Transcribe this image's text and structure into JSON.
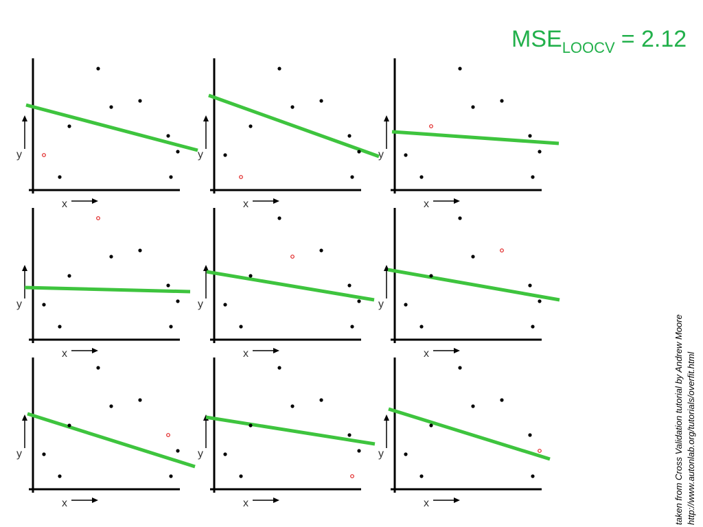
{
  "title": {
    "main": "MSE",
    "sub": "LOOCV",
    "rest": "= 2.12",
    "color": "#22b04b"
  },
  "source": [
    "taken from Cross Validation tutorial by Andrew Moore",
    "http://www.autonlab.org/tutorials/overfit.html"
  ],
  "chart_data": [
    {
      "type": "scatter",
      "xlabel": "x",
      "ylabel": "y",
      "xlim": [
        -15,
        245
      ],
      "ylim": [
        -5,
        195
      ],
      "x": [
        16,
        39,
        53,
        95,
        114,
        156,
        197,
        201,
        211
      ],
      "values": [
        51,
        19,
        93,
        177,
        121,
        130,
        79,
        19,
        56
      ],
      "held_out": 0,
      "point_color": "#000000",
      "held_out_color": "#e02020",
      "line_color": "#3ec43e",
      "fit": {
        "x": [
          -10,
          240
        ],
        "y": [
          124,
          58
        ]
      }
    },
    {
      "type": "scatter",
      "xlabel": "x",
      "ylabel": "y",
      "xlim": [
        -15,
        245
      ],
      "ylim": [
        -5,
        195
      ],
      "x": [
        16,
        39,
        53,
        95,
        114,
        156,
        197,
        201,
        211
      ],
      "values": [
        51,
        19,
        93,
        177,
        121,
        130,
        79,
        19,
        56
      ],
      "held_out": 1,
      "point_color": "#000000",
      "held_out_color": "#e02020",
      "line_color": "#3ec43e",
      "fit": {
        "x": [
          -8,
          240
        ],
        "y": [
          138,
          49
        ]
      }
    },
    {
      "type": "scatter",
      "xlabel": "x",
      "ylabel": "y",
      "xlim": [
        -15,
        245
      ],
      "ylim": [
        -5,
        195
      ],
      "x": [
        16,
        39,
        53,
        95,
        114,
        156,
        197,
        201,
        211
      ],
      "values": [
        51,
        19,
        93,
        177,
        121,
        130,
        79,
        19,
        56
      ],
      "held_out": 2,
      "point_color": "#000000",
      "held_out_color": "#e02020",
      "line_color": "#3ec43e",
      "fit": {
        "x": [
          -4,
          239
        ],
        "y": [
          85,
          68
        ]
      }
    },
    {
      "type": "scatter",
      "xlabel": "x",
      "ylabel": "y",
      "xlim": [
        -15,
        245
      ],
      "ylim": [
        -5,
        195
      ],
      "x": [
        16,
        39,
        53,
        95,
        114,
        156,
        197,
        201,
        211
      ],
      "values": [
        51,
        19,
        93,
        177,
        121,
        130,
        79,
        19,
        56
      ],
      "held_out": 3,
      "point_color": "#000000",
      "held_out_color": "#e02020",
      "line_color": "#3ec43e",
      "fit": {
        "x": [
          -12,
          229
        ],
        "y": [
          76,
          70
        ]
      }
    },
    {
      "type": "scatter",
      "xlabel": "x",
      "ylabel": "y",
      "xlim": [
        -15,
        245
      ],
      "ylim": [
        -5,
        195
      ],
      "x": [
        16,
        39,
        53,
        95,
        114,
        156,
        197,
        201,
        211
      ],
      "values": [
        51,
        19,
        93,
        177,
        121,
        130,
        79,
        19,
        56
      ],
      "held_out": 4,
      "point_color": "#000000",
      "held_out_color": "#e02020",
      "line_color": "#3ec43e",
      "fit": {
        "x": [
          -11,
          233
        ],
        "y": [
          99,
          58
        ]
      }
    },
    {
      "type": "scatter",
      "xlabel": "x",
      "ylabel": "y",
      "xlim": [
        -15,
        245
      ],
      "ylim": [
        -5,
        195
      ],
      "x": [
        16,
        39,
        53,
        95,
        114,
        156,
        197,
        201,
        211
      ],
      "values": [
        51,
        19,
        93,
        177,
        121,
        130,
        79,
        19,
        56
      ],
      "held_out": 5,
      "point_color": "#000000",
      "held_out_color": "#e02020",
      "line_color": "#3ec43e",
      "fit": {
        "x": [
          -10,
          240
        ],
        "y": [
          102,
          58
        ]
      }
    },
    {
      "type": "scatter",
      "xlabel": "x",
      "ylabel": "y",
      "xlim": [
        -15,
        245
      ],
      "ylim": [
        -5,
        195
      ],
      "x": [
        16,
        39,
        53,
        95,
        114,
        156,
        197,
        201,
        211
      ],
      "values": [
        51,
        19,
        93,
        177,
        121,
        130,
        79,
        19,
        56
      ],
      "held_out": 6,
      "point_color": "#000000",
      "held_out_color": "#e02020",
      "line_color": "#3ec43e",
      "fit": {
        "x": [
          -8,
          236
        ],
        "y": [
          110,
          33
        ]
      }
    },
    {
      "type": "scatter",
      "xlabel": "x",
      "ylabel": "y",
      "xlim": [
        -15,
        245
      ],
      "ylim": [
        -5,
        195
      ],
      "x": [
        16,
        39,
        53,
        95,
        114,
        156,
        197,
        201,
        211
      ],
      "values": [
        51,
        19,
        93,
        177,
        121,
        130,
        79,
        19,
        56
      ],
      "held_out": 7,
      "point_color": "#000000",
      "held_out_color": "#e02020",
      "line_color": "#3ec43e",
      "fit": {
        "x": [
          -12,
          234
        ],
        "y": [
          105,
          66
        ]
      }
    },
    {
      "type": "scatter",
      "xlabel": "x",
      "ylabel": "y",
      "xlim": [
        -15,
        245
      ],
      "ylim": [
        -5,
        195
      ],
      "x": [
        16,
        39,
        53,
        95,
        114,
        156,
        197,
        201,
        211
      ],
      "values": [
        51,
        19,
        93,
        177,
        121,
        130,
        79,
        19,
        56
      ],
      "held_out": 8,
      "point_color": "#000000",
      "held_out_color": "#e02020",
      "line_color": "#3ec43e",
      "fit": {
        "x": [
          -9,
          226
        ],
        "y": [
          117,
          44
        ]
      }
    }
  ]
}
